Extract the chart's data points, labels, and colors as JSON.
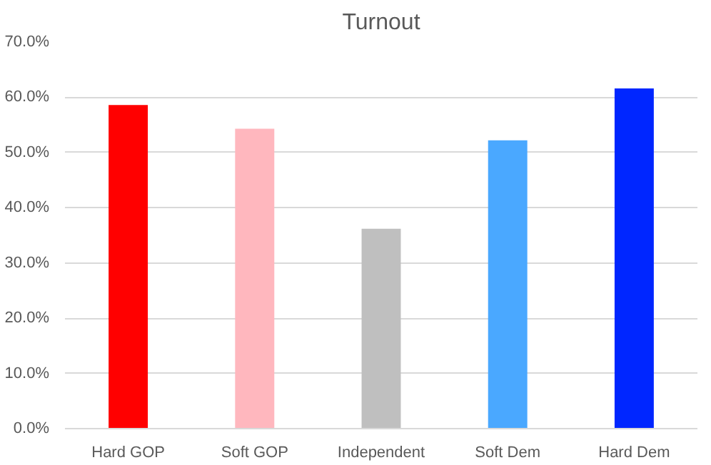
{
  "chart_data": {
    "type": "bar",
    "title": "Turnout",
    "categories": [
      "Hard GOP",
      "Soft GOP",
      "Independent",
      "Soft Dem",
      "Hard Dem"
    ],
    "values": [
      58.6,
      54.3,
      36.2,
      52.2,
      61.6
    ],
    "colors": [
      "#ff0000",
      "#ffb7be",
      "#bfbfbf",
      "#4aa8ff",
      "#0026ff"
    ],
    "ylim": [
      0,
      70
    ],
    "yticks": [
      {
        "value": 0,
        "label": "0.0%"
      },
      {
        "value": 10,
        "label": "10.0%"
      },
      {
        "value": 20,
        "label": "20.0%"
      },
      {
        "value": 30,
        "label": "30.0%"
      },
      {
        "value": 40,
        "label": "40.0%"
      },
      {
        "value": 50,
        "label": "50.0%"
      },
      {
        "value": 60,
        "label": "60.0%"
      },
      {
        "value": 70,
        "label": "70.0%"
      }
    ],
    "grid": "y"
  }
}
